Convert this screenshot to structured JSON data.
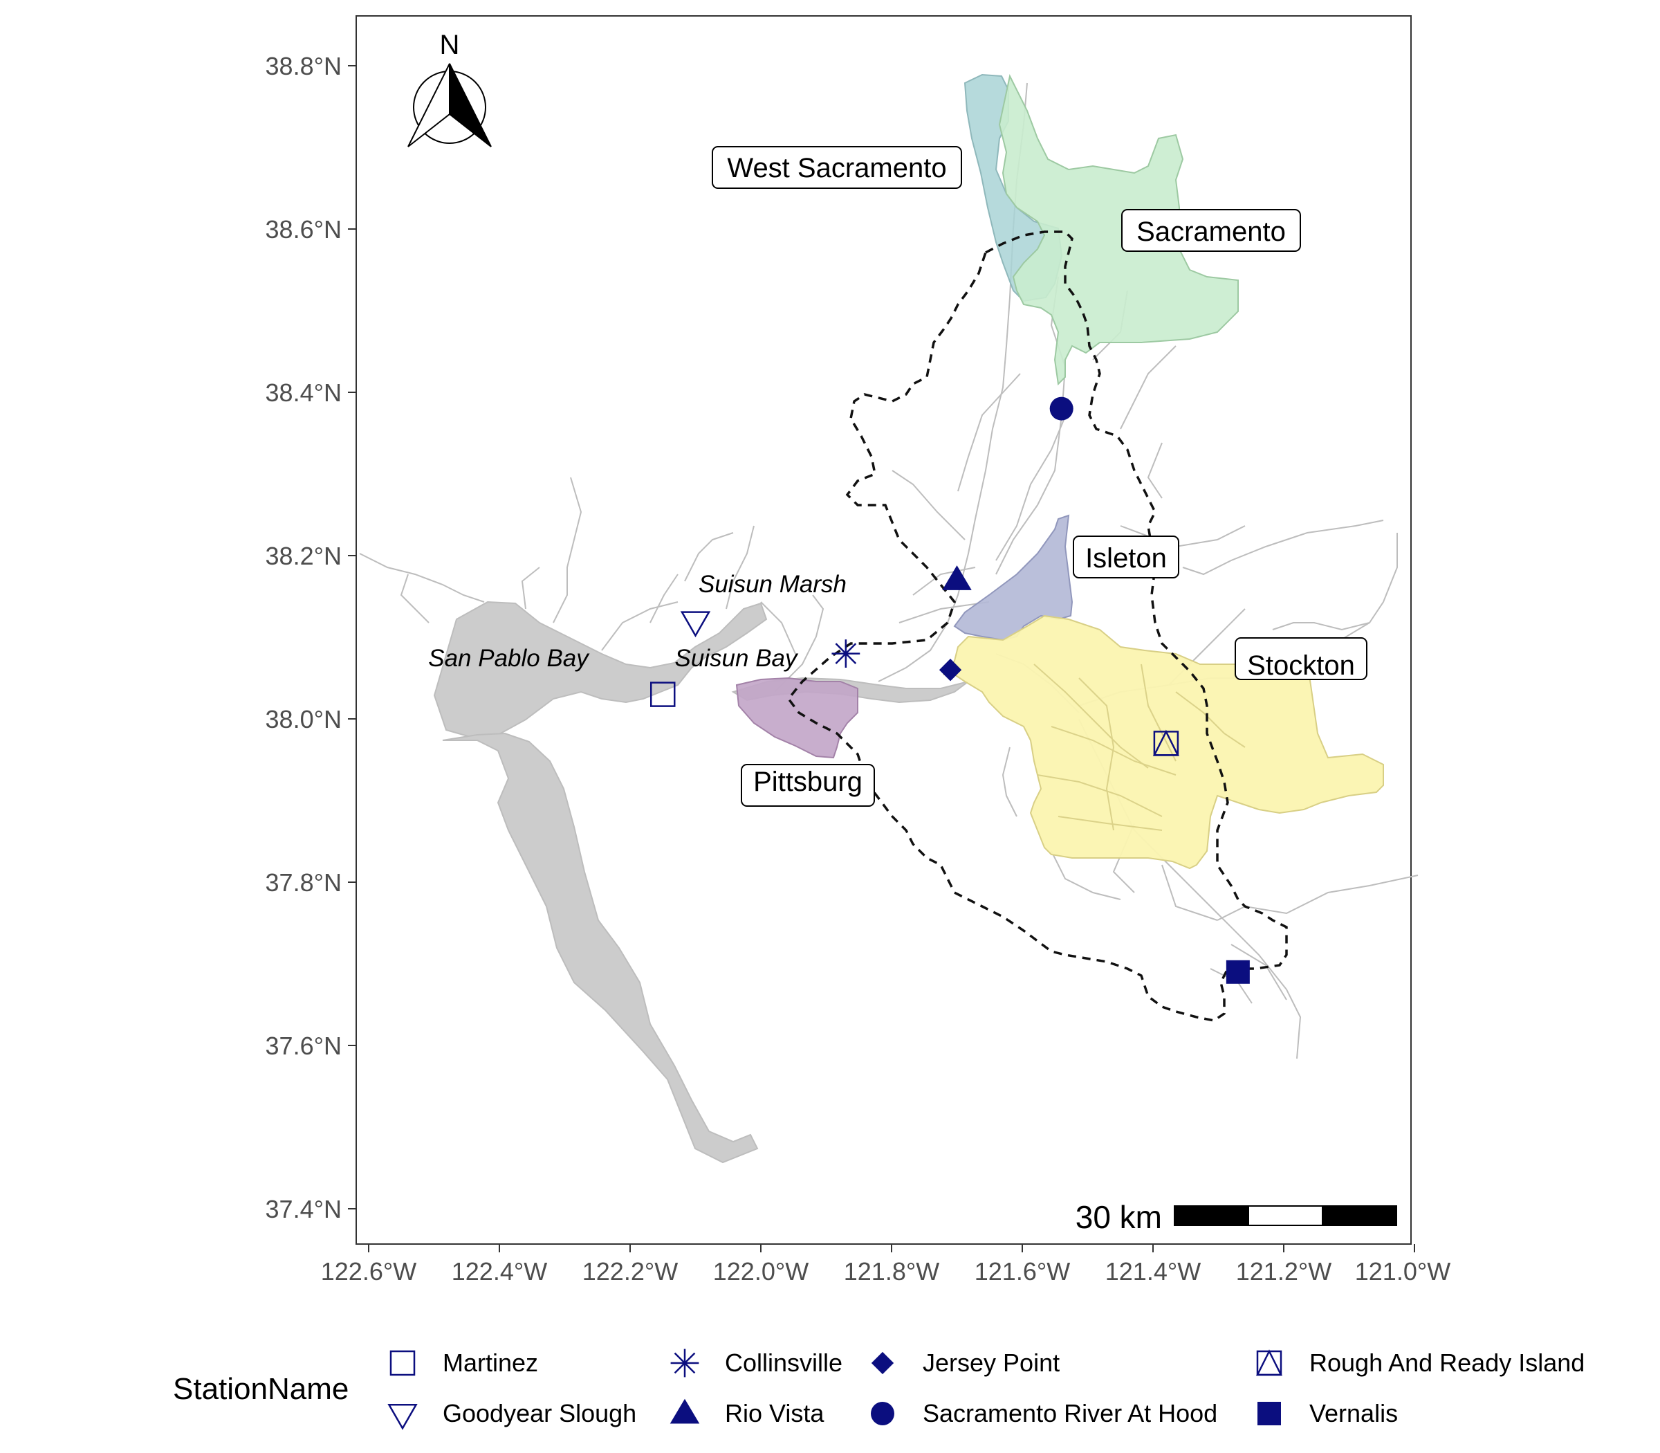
{
  "map": {
    "axes": {
      "lat_ticks": [
        "38.8°N",
        "38.6°N",
        "38.4°N",
        "38.2°N",
        "38.0°N",
        "37.8°N",
        "37.6°N",
        "37.4°N"
      ],
      "lon_ticks": [
        "122.6°W",
        "122.4°W",
        "122.2°W",
        "122.0°W",
        "121.8°W",
        "121.6°W",
        "121.4°W",
        "121.2°W",
        "121.0°W"
      ]
    },
    "north_arrow": {
      "label": "N"
    },
    "scale_bar": {
      "label": "30 km"
    },
    "city_labels": [
      "West Sacramento",
      "Sacramento",
      "Isleton",
      "Stockton",
      "Pittsburg"
    ],
    "water_labels": [
      "Suisun Marsh",
      "San Pablo Bay",
      "Suisun Bay"
    ],
    "colors": {
      "water": "#cccccc",
      "river_lines": "#bdbdbd",
      "west_sacramento": "#a9d3d6",
      "sacramento": "#c9ecce",
      "isleton": "#b3b8d6",
      "stockton": "#fbf4b0",
      "pittsburg": "#c2a5c8",
      "station_marker": "#0b0e7f"
    },
    "stations": [
      {
        "name": "Martinez",
        "lon": -122.15,
        "lat": 38.03,
        "shape": "square-open"
      },
      {
        "name": "Goodyear Slough",
        "lon": -122.1,
        "lat": 38.12,
        "shape": "triangle-down-open"
      },
      {
        "name": "Collinsville",
        "lon": -121.87,
        "lat": 38.08,
        "shape": "asterisk"
      },
      {
        "name": "Rio Vista",
        "lon": -121.7,
        "lat": 38.17,
        "shape": "triangle-filled"
      },
      {
        "name": "Jersey Point",
        "lon": -121.71,
        "lat": 38.06,
        "shape": "diamond-filled"
      },
      {
        "name": "Sacramento River At Hood",
        "lon": -121.54,
        "lat": 38.38,
        "shape": "circle-filled"
      },
      {
        "name": "Rough And Ready Island",
        "lon": -121.38,
        "lat": 37.97,
        "shape": "square-triangle"
      },
      {
        "name": "Vernalis",
        "lon": -121.27,
        "lat": 37.69,
        "shape": "square-filled"
      }
    ]
  },
  "legend": {
    "title": "StationName",
    "items": [
      "Martinez",
      "Goodyear Slough",
      "Collinsville",
      "Rio Vista",
      "Jersey Point",
      "Sacramento River At Hood",
      "Rough And Ready Island",
      "Vernalis"
    ]
  }
}
